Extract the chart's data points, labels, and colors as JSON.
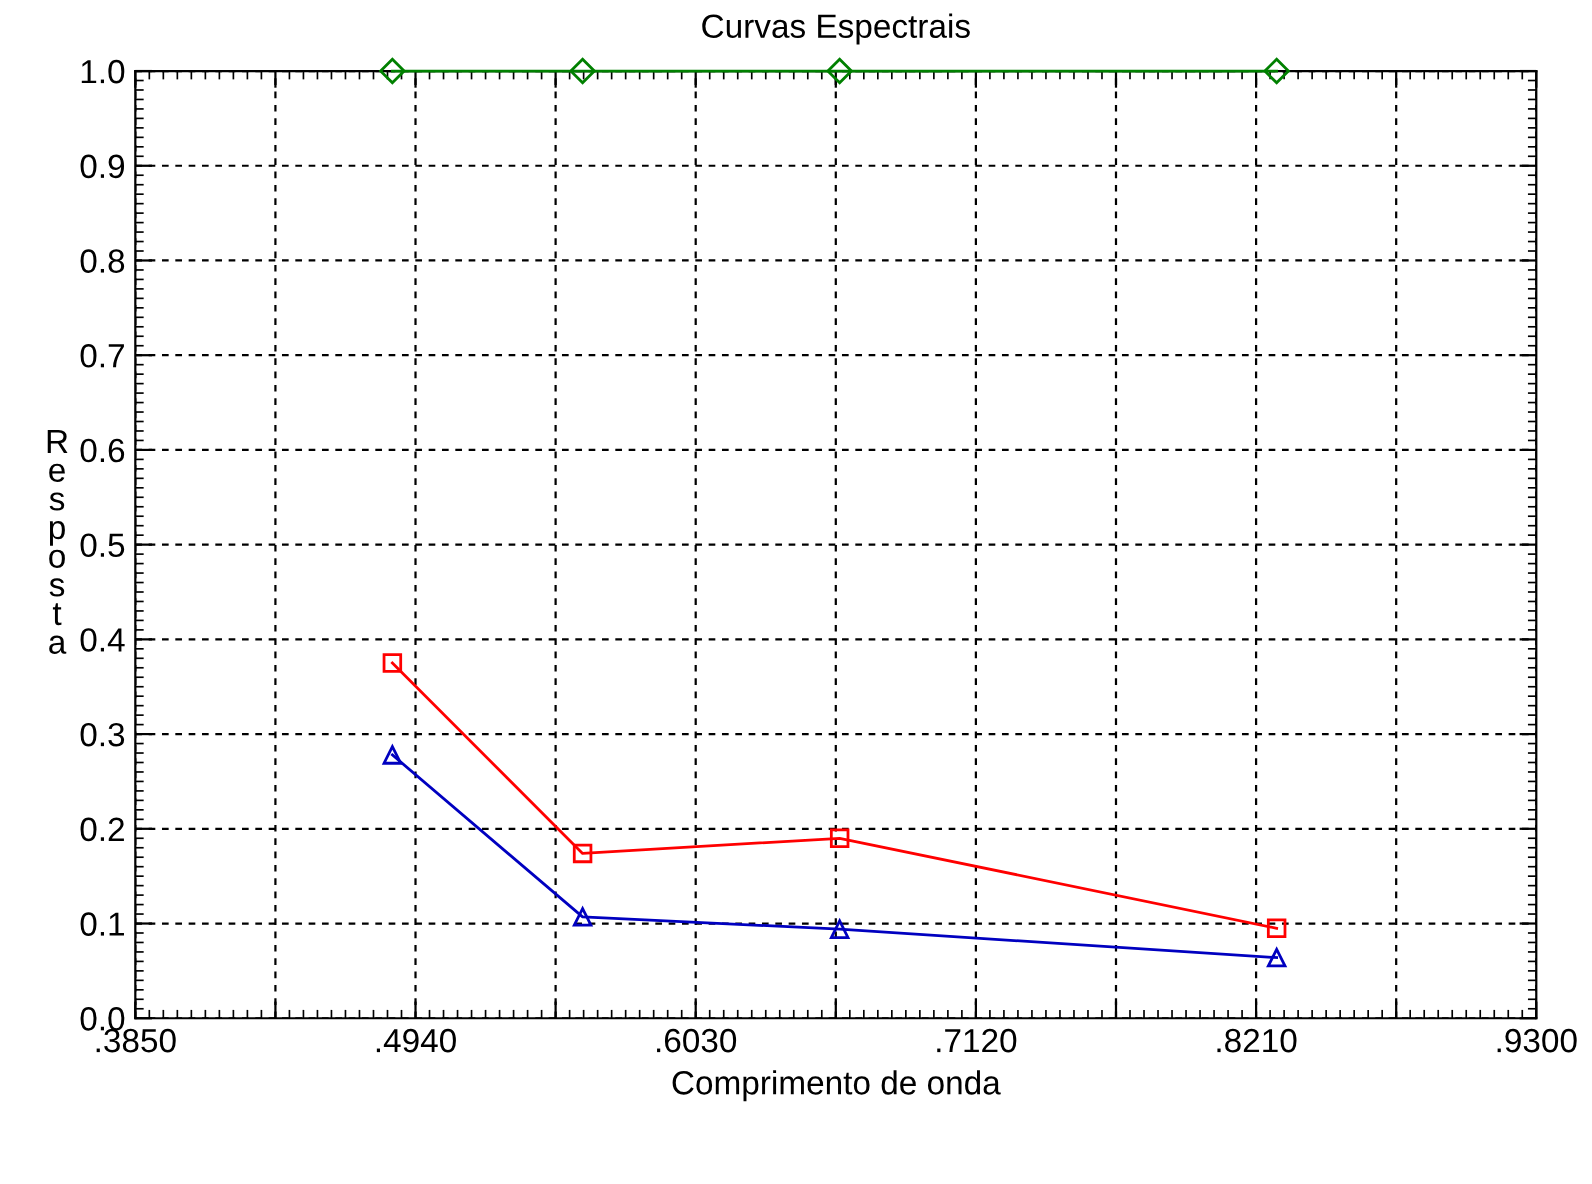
{
  "chart_data": {
    "type": "line",
    "title": "Curvas Espectrais",
    "xlabel": "Comprimento de onda",
    "ylabel": "Resposta",
    "x": [
      0.485,
      0.559,
      0.659,
      0.829
    ],
    "series": [
      {
        "color": "#008000",
        "marker": "diamond",
        "values": [
          1.0,
          1.0,
          1.0,
          1.0
        ]
      },
      {
        "color": "#ff0000",
        "marker": "square",
        "values": [
          0.375,
          0.174,
          0.19,
          0.095
        ]
      },
      {
        "color": "#0000c0",
        "marker": "triangle",
        "values": [
          0.278,
          0.107,
          0.094,
          0.064
        ]
      }
    ],
    "xlim": [
      0.385,
      0.93
    ],
    "xticks": [
      {
        "value": 0.385,
        "label": ".3850"
      },
      {
        "value": 0.4395,
        "label": null
      },
      {
        "value": 0.494,
        "label": ".4940"
      },
      {
        "value": 0.5485,
        "label": null
      },
      {
        "value": 0.603,
        "label": ".6030"
      },
      {
        "value": 0.6575,
        "label": null
      },
      {
        "value": 0.712,
        "label": ".7120"
      },
      {
        "value": 0.7665,
        "label": null
      },
      {
        "value": 0.821,
        "label": ".8210"
      },
      {
        "value": 0.8755,
        "label": null
      },
      {
        "value": 0.93,
        "label": ".9300"
      }
    ],
    "ylim": [
      0,
      1.0
    ],
    "yticks": [
      {
        "value": 0,
        "label": "0.0"
      },
      0.1,
      0.2,
      0.3,
      0.4,
      0.5,
      0.6,
      0.7,
      0.8,
      0.9,
      {
        "value": 1.0,
        "label": "1.0"
      }
    ],
    "grid": true,
    "line_style": "solid"
  }
}
